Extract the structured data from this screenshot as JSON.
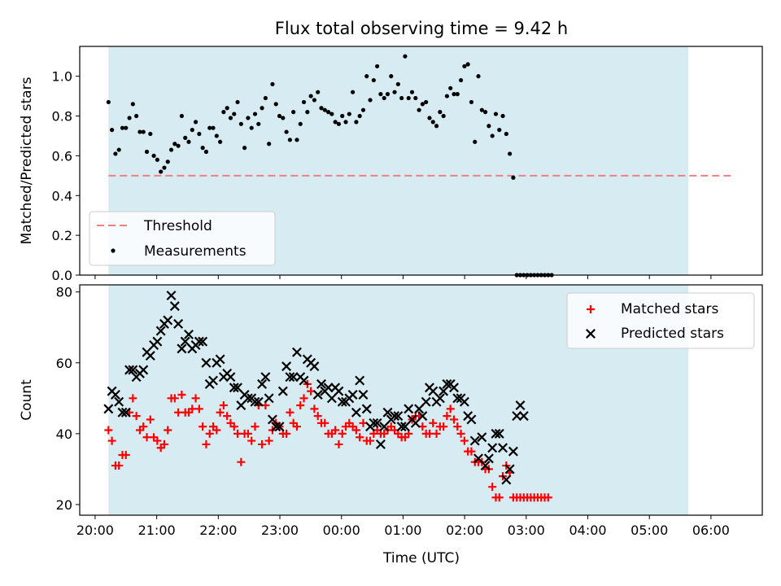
{
  "chart_data": [
    {
      "type": "scatter",
      "title": "Flux total observing time = 9.42 h",
      "xlabel": "",
      "ylabel": "Matched/Predicted stars",
      "ylim": [
        0,
        1.15
      ],
      "xlim": [
        "19:45",
        "06:50"
      ],
      "yticks": [
        0.0,
        0.2,
        0.4,
        0.6,
        0.8,
        1.0
      ],
      "ytick_labels": [
        "0.0",
        "0.2",
        "0.4",
        "0.6",
        "0.8",
        "1.0"
      ],
      "xticks": [
        "20:00",
        "21:00",
        "22:00",
        "23:00",
        "00:00",
        "01:00",
        "02:00",
        "03:00",
        "04:00",
        "05:00",
        "06:00"
      ],
      "observing_window": {
        "start": "20:13",
        "end": "05:38",
        "color": "#add8e6"
      },
      "threshold": {
        "name": "Threshold",
        "value": 0.5,
        "x_start": "20:13",
        "x_end": "06:20",
        "color": "#f08080"
      },
      "legend": {
        "placement": "lower-left",
        "entries": [
          "Threshold",
          "Measurements"
        ]
      },
      "series": [
        {
          "name": "Measurements",
          "marker": "dot",
          "color": "#000000",
          "x_start": "20:13",
          "x_step_min": 3.4,
          "values": [
            0.87,
            0.73,
            0.61,
            0.63,
            0.74,
            0.74,
            0.79,
            0.86,
            0.8,
            0.72,
            0.72,
            0.62,
            0.71,
            0.6,
            0.58,
            0.52,
            0.54,
            0.57,
            0.63,
            0.66,
            0.65,
            0.8,
            0.69,
            0.67,
            0.73,
            0.77,
            0.71,
            0.64,
            0.62,
            0.74,
            0.74,
            0.7,
            0.67,
            0.82,
            0.84,
            0.79,
            0.81,
            0.87,
            0.76,
            0.64,
            0.79,
            0.74,
            0.81,
            0.76,
            0.84,
            0.89,
            0.66,
            0.96,
            0.86,
            0.8,
            0.79,
            0.72,
            0.68,
            0.82,
            0.68,
            0.76,
            0.87,
            0.82,
            0.9,
            0.88,
            0.92,
            0.84,
            0.83,
            0.82,
            0.81,
            0.77,
            0.76,
            0.8,
            0.77,
            0.81,
            0.92,
            0.77,
            0.8,
            0.83,
            1.0,
            0.88,
            0.98,
            1.05,
            0.91,
            0.89,
            0.91,
            1.0,
            0.92,
            0.96,
            0.89,
            1.1,
            0.89,
            0.92,
            0.89,
            0.83,
            0.86,
            0.87,
            0.79,
            0.77,
            0.75,
            0.82,
            0.8,
            0.9,
            0.94,
            0.91,
            0.91,
            0.98,
            1.05,
            1.06,
            0.87,
            0.67,
            1.0,
            0.83,
            0.82,
            0.75,
            0.7,
            0.81,
            0.73,
            0.8,
            0.71,
            0.61,
            0.49,
            0,
            0,
            0,
            0,
            0,
            0,
            0,
            0,
            0,
            0,
            0
          ]
        }
      ]
    },
    {
      "type": "scatter",
      "title": "",
      "xlabel": "Time (UTC)",
      "ylabel": "Count",
      "ylim": [
        17,
        82
      ],
      "xlim": [
        "19:45",
        "06:50"
      ],
      "yticks": [
        20,
        40,
        60,
        80
      ],
      "ytick_labels": [
        "20",
        "40",
        "60",
        "80"
      ],
      "xticks": [
        "20:00",
        "21:00",
        "22:00",
        "23:00",
        "00:00",
        "01:00",
        "02:00",
        "03:00",
        "04:00",
        "05:00",
        "06:00"
      ],
      "observing_window": {
        "start": "20:13",
        "end": "05:38",
        "color": "#add8e6"
      },
      "legend": {
        "placement": "upper-right",
        "entries": [
          "Matched stars",
          "Predicted stars"
        ]
      },
      "series": [
        {
          "name": "Matched stars",
          "marker": "plus",
          "color": "#ff0000",
          "x_start": "20:13",
          "x_step_min": 3.4,
          "values": [
            41,
            38,
            31,
            31,
            34,
            34,
            46,
            50,
            45,
            41,
            42,
            39,
            44,
            39,
            38,
            36,
            37,
            41,
            50,
            50,
            46,
            51,
            46,
            46,
            47,
            50,
            47,
            42,
            37,
            40,
            42,
            41,
            46,
            48,
            45,
            43,
            42,
            40,
            32,
            40,
            40,
            38,
            42,
            48,
            37,
            48,
            38,
            41,
            43,
            42,
            40,
            40,
            46,
            43,
            42,
            48,
            50,
            54,
            52,
            47,
            45,
            43,
            43,
            40,
            40,
            41,
            37,
            40,
            42,
            43,
            42,
            41,
            39,
            43,
            38,
            38,
            40,
            41,
            40,
            40,
            41,
            42,
            41,
            40,
            39,
            39,
            40,
            44,
            45,
            45,
            42,
            40,
            40,
            43,
            40,
            42,
            42,
            45,
            47,
            44,
            42,
            40,
            38,
            35,
            35,
            32,
            32,
            32,
            30,
            30,
            25,
            22,
            22,
            28,
            31,
            29,
            22,
            22,
            22,
            22,
            22,
            22,
            22,
            22,
            22,
            22,
            22
          ]
        },
        {
          "name": "Predicted stars",
          "marker": "x",
          "color": "#000000",
          "x_start": "20:13",
          "x_step_min": 3.4,
          "values": [
            47,
            52,
            51,
            49,
            46,
            46,
            58,
            58,
            56,
            57,
            58,
            63,
            62,
            65,
            66,
            69,
            71,
            72,
            79,
            76,
            71,
            64,
            66,
            68,
            64,
            65,
            66,
            66,
            60,
            54,
            55,
            60,
            61,
            56,
            57,
            56,
            53,
            53,
            48,
            51,
            50,
            50,
            49,
            49,
            54,
            56,
            50,
            44,
            42,
            42,
            52,
            59,
            56,
            56,
            63,
            56,
            55,
            61,
            60,
            59,
            51,
            54,
            52,
            53,
            50,
            53,
            52,
            49,
            49,
            50,
            51,
            46,
            55,
            51,
            47,
            42,
            43,
            43,
            37,
            42,
            46,
            44,
            45,
            45,
            42,
            42,
            47,
            44,
            43,
            47,
            45,
            49,
            53,
            52,
            49,
            50,
            52,
            54,
            54,
            53,
            50,
            50,
            49,
            45,
            44,
            38,
            33,
            39,
            31,
            33,
            36,
            40,
            40,
            36,
            27,
            30,
            35,
            45,
            48,
            45
          ]
        }
      ]
    }
  ]
}
